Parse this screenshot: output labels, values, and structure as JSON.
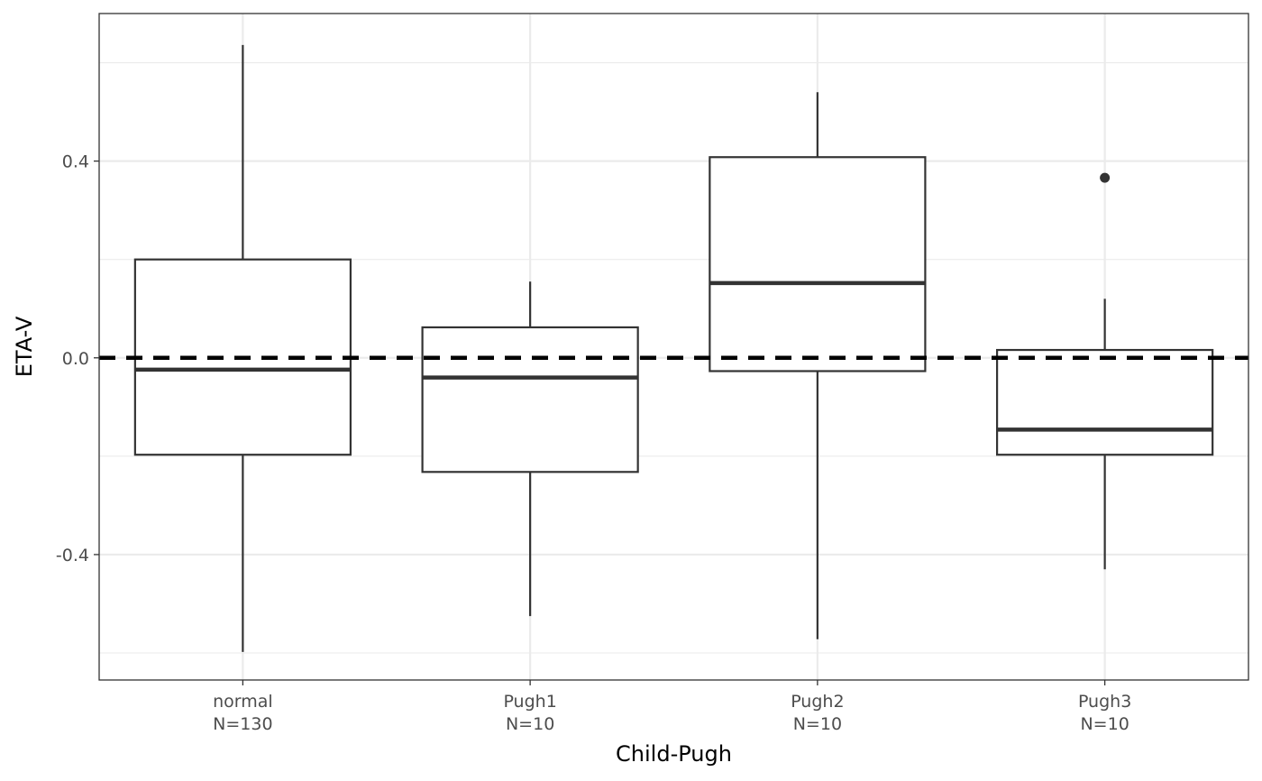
{
  "chart_data": {
    "type": "boxplot",
    "xlabel": "Child-Pugh",
    "ylabel": "ETA-V",
    "ylim": [
      -0.655,
      0.7
    ],
    "yticks": [
      -0.4,
      0.0,
      0.4
    ],
    "ytick_labels": [
      "-0.4",
      "0.0",
      "0.4"
    ],
    "grid": true,
    "reference_line": {
      "y": 0.0,
      "style": "dashed",
      "color": "#000000"
    },
    "categories": [
      {
        "name": "normal",
        "n_label": "N=130",
        "whisker_low": -0.598,
        "q1": -0.197,
        "median": -0.024,
        "q3": 0.2,
        "whisker_high": 0.636,
        "outliers": []
      },
      {
        "name": "Pugh1",
        "n_label": "N=10",
        "whisker_low": -0.525,
        "q1": -0.232,
        "median": -0.04,
        "q3": 0.062,
        "whisker_high": 0.155,
        "outliers": []
      },
      {
        "name": "Pugh2",
        "n_label": "N=10",
        "whisker_low": -0.572,
        "q1": -0.027,
        "median": 0.152,
        "q3": 0.408,
        "whisker_high": 0.54,
        "outliers": []
      },
      {
        "name": "Pugh3",
        "n_label": "N=10",
        "whisker_low": -0.43,
        "q1": -0.197,
        "median": -0.146,
        "q3": 0.016,
        "whisker_high": 0.12,
        "outliers": [
          0.366
        ]
      }
    ],
    "colors": {
      "box_stroke": "#333333",
      "grid": "#ebebeb",
      "panel_border": "#333333",
      "tick_text": "#4d4d4d"
    }
  }
}
